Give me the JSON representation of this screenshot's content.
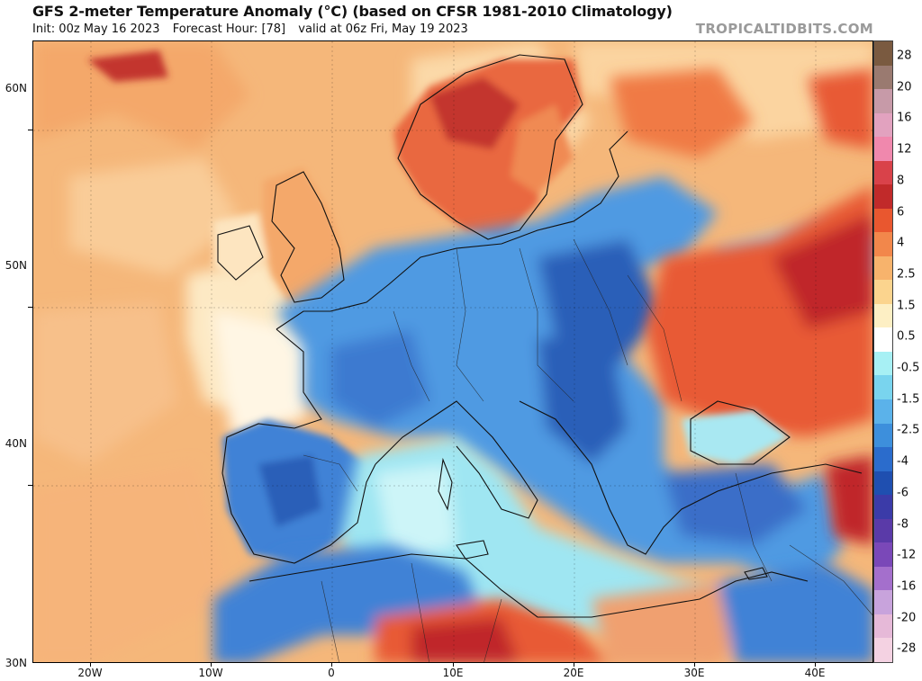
{
  "header": {
    "title": "GFS 2-meter Temperature Anomaly (°C) (based on CFSR 1981-2010 Climatology)",
    "init": "Init: 00z May 16 2023",
    "forecast_hour": "Forecast Hour: [78]",
    "valid": "valid at 06z Fri, May 19 2023",
    "watermark": "TROPICALTIDBITS.COM"
  },
  "map": {
    "lat_labels": [
      "60N",
      "50N",
      "40N",
      "30N"
    ],
    "lon_labels": [
      "20W",
      "10W",
      "0",
      "10E",
      "20E",
      "30E",
      "40E"
    ],
    "colors": {
      "ocean_warm": "#f5b77a",
      "ocean_neutral": "#fbe2b8",
      "cold": "#4f9ae2",
      "very_cold": "#2a5fb8",
      "cool": "#9fe6f2",
      "warm": "#e85a35",
      "hot": "#c0262c"
    }
  },
  "colorbar": {
    "labels": [
      "28",
      "20",
      "16",
      "12",
      "8",
      "6",
      "4",
      "2.5",
      "1.5",
      "0.5",
      "-0.5",
      "-1.5",
      "-2.5",
      "-4",
      "-6",
      "-8",
      "-12",
      "-16",
      "-20",
      "-28"
    ],
    "colors": [
      "#7a5a40",
      "#9a7a70",
      "#c79aa8",
      "#e2a2bf",
      "#f088ad",
      "#d9424a",
      "#c12a2a",
      "#e9572f",
      "#f2874b",
      "#f7b36c",
      "#fbd48e",
      "#fdefc4",
      "#ffffff",
      "#a7f0f4",
      "#79d4ee",
      "#5bb2ea",
      "#3d8fdc",
      "#2b6ccc",
      "#1f4fb0",
      "#3b3ba8",
      "#5a3aa8",
      "#7a48b8",
      "#a46fcc",
      "#c8a3dc",
      "#e6b9d8",
      "#f4d2e2"
    ]
  }
}
